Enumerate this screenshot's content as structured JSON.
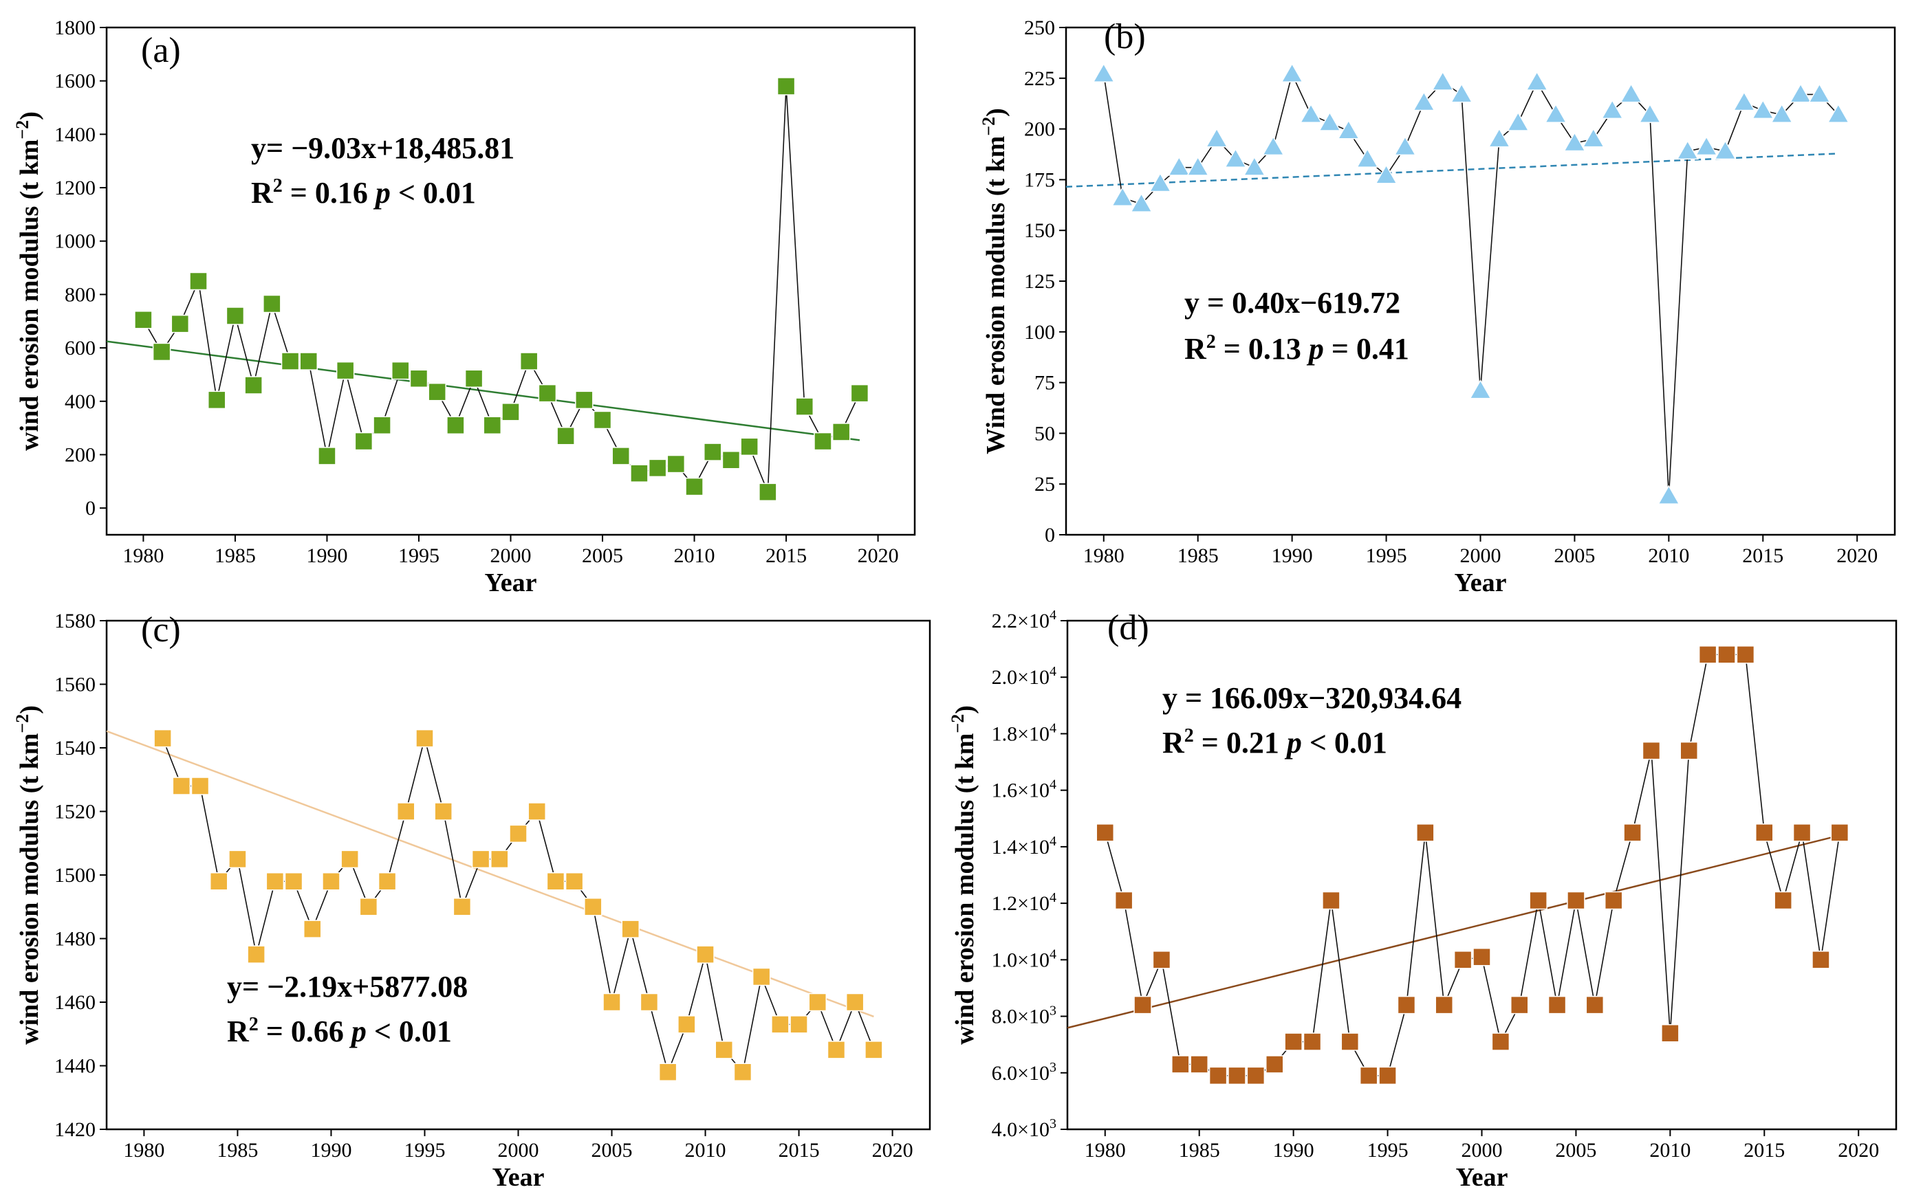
{
  "chart_data": [
    {
      "type": "line",
      "panel_label": "(a)",
      "title": "",
      "xlabel": "Year",
      "ylabel": "wind erosion modulus (t km",
      "ylabel_sup": "−2",
      "ylabel_close": ")",
      "xlim": [
        1978,
        2022
      ],
      "ylim": [
        -100,
        1800
      ],
      "xticks": [
        1980,
        1985,
        1990,
        1995,
        2000,
        2005,
        2010,
        2015,
        2020
      ],
      "yticks": [
        0,
        200,
        400,
        600,
        800,
        1000,
        1200,
        1400,
        1600,
        1800
      ],
      "x": [
        1980,
        1981,
        1982,
        1983,
        1984,
        1985,
        1986,
        1987,
        1988,
        1989,
        1990,
        1991,
        1992,
        1993,
        1994,
        1995,
        1996,
        1997,
        1998,
        1999,
        2000,
        2001,
        2002,
        2003,
        2004,
        2005,
        2006,
        2007,
        2008,
        2009,
        2010,
        2011,
        2012,
        2013,
        2014,
        2015,
        2016,
        2017,
        2018,
        2019
      ],
      "values": [
        705,
        585,
        690,
        850,
        405,
        720,
        460,
        765,
        550,
        550,
        195,
        515,
        250,
        310,
        515,
        485,
        435,
        310,
        485,
        310,
        360,
        550,
        430,
        270,
        405,
        330,
        195,
        130,
        150,
        165,
        80,
        210,
        180,
        230,
        60,
        1580,
        380,
        250,
        285,
        430
      ],
      "marker": "square",
      "marker_color": "#5a9e1e",
      "trend": {
        "slope": -9.03,
        "intercept": 18485.81,
        "x_range": [
          1978,
          2019
        ],
        "color": "#2e7d32",
        "dashed": false
      },
      "equation": "y= −9.03x+18,485.81",
      "r2_prefix": "R",
      "r2_sup": "2",
      "r2_text": " = 0.16 ",
      "p_symbol": "p",
      "p_text": " < 0.01"
    },
    {
      "type": "line",
      "panel_label": "(b)",
      "title": "",
      "xlabel": "Year",
      "ylabel": "Wind erosion modulus (t km",
      "ylabel_sup": "−2",
      "ylabel_close": ")",
      "xlim": [
        1978,
        2022
      ],
      "ylim": [
        0,
        250
      ],
      "xticks": [
        1980,
        1985,
        1990,
        1995,
        2000,
        2005,
        2010,
        2015,
        2020
      ],
      "yticks": [
        0,
        25,
        50,
        75,
        100,
        125,
        150,
        175,
        200,
        225,
        250
      ],
      "x": [
        1980,
        1981,
        1982,
        1983,
        1984,
        1985,
        1986,
        1987,
        1988,
        1989,
        1990,
        1991,
        1992,
        1993,
        1994,
        1995,
        1996,
        1997,
        1998,
        1999,
        2000,
        2001,
        2002,
        2003,
        2004,
        2005,
        2006,
        2007,
        2008,
        2009,
        2010,
        2011,
        2012,
        2013,
        2014,
        2015,
        2016,
        2017,
        2018,
        2019
      ],
      "values": [
        227,
        166,
        163,
        173,
        181,
        181,
        195,
        185,
        181,
        191,
        227,
        207,
        203,
        199,
        185,
        177,
        191,
        213,
        223,
        217,
        71,
        195,
        203,
        223,
        207,
        193,
        195,
        209,
        217,
        207,
        19,
        189,
        191,
        189,
        213,
        209,
        207,
        217,
        217,
        207
      ],
      "marker": "triangle",
      "marker_color": "#8ecbef",
      "trend": {
        "slope": 0.4,
        "intercept": -619.72,
        "x_range": [
          1978,
          2019
        ],
        "color": "#2f86b3",
        "dashed": true
      },
      "equation": "y = 0.40x−619.72",
      "r2_prefix": "R",
      "r2_sup": "2",
      "r2_text": " = 0.13 ",
      "p_symbol": "p",
      "p_text": " = 0.41"
    },
    {
      "type": "line",
      "panel_label": "(c)",
      "title": "",
      "xlabel": "Year",
      "ylabel": "wind erosion modulus (t km",
      "ylabel_sup": "−2",
      "ylabel_close": ")",
      "xlim": [
        1978,
        2022
      ],
      "ylim": [
        1420,
        1580
      ],
      "xticks": [
        1980,
        1985,
        1990,
        1995,
        2000,
        2005,
        2010,
        2015,
        2020
      ],
      "yticks": [
        1420,
        1440,
        1460,
        1480,
        1500,
        1520,
        1540,
        1560,
        1580
      ],
      "x": [
        1981,
        1982,
        1983,
        1984,
        1985,
        1986,
        1987,
        1988,
        1989,
        1990,
        1991,
        1992,
        1993,
        1994,
        1995,
        1996,
        1997,
        1998,
        1999,
        2000,
        2001,
        2002,
        2003,
        2004,
        2005,
        2006,
        2007,
        2008,
        2009,
        2010,
        2011,
        2012,
        2013,
        2014,
        2015,
        2016,
        2017,
        2018,
        2019
      ],
      "values": [
        1543,
        1528,
        1528,
        1498,
        1505,
        1475,
        1498,
        1498,
        1483,
        1498,
        1505,
        1490,
        1498,
        1520,
        1543,
        1520,
        1490,
        1505,
        1505,
        1513,
        1520,
        1498,
        1498,
        1490,
        1460,
        1483,
        1460,
        1438,
        1453,
        1475,
        1445,
        1438,
        1468,
        1453,
        1453,
        1460,
        1445,
        1460,
        1445
      ],
      "marker": "square",
      "marker_color": "#f0b43c",
      "trend": {
        "slope": -2.19,
        "intercept": 5877.08,
        "x_range": [
          1978,
          2019
        ],
        "color": "#f0c89a",
        "dashed": false
      },
      "equation": "y= −2.19x+5877.08",
      "r2_prefix": "R",
      "r2_sup": "2",
      "r2_text": " = 0.66 ",
      "p_symbol": "p",
      "p_text": " < 0.01"
    },
    {
      "type": "line",
      "panel_label": "(d)",
      "title": "",
      "xlabel": "Year",
      "ylabel": "wind erosion modulus (t km",
      "ylabel_sup": "−2",
      "ylabel_close": ")",
      "xlim": [
        1978,
        2022
      ],
      "ylim": [
        4000,
        22000
      ],
      "xticks": [
        1980,
        1985,
        1990,
        1995,
        2000,
        2005,
        2010,
        2015,
        2020
      ],
      "yticks": [
        4000,
        6000,
        8000,
        10000,
        12000,
        14000,
        16000,
        18000,
        20000,
        22000
      ],
      "ytick_labels": [
        {
          "base": "4.0×10",
          "exp": "3"
        },
        {
          "base": "6.0×10",
          "exp": "3"
        },
        {
          "base": "8.0×10",
          "exp": "3"
        },
        {
          "base": "1.0×10",
          "exp": "4"
        },
        {
          "base": "1.2×10",
          "exp": "4"
        },
        {
          "base": "1.4×10",
          "exp": "4"
        },
        {
          "base": "1.6×10",
          "exp": "4"
        },
        {
          "base": "1.8×10",
          "exp": "4"
        },
        {
          "base": "2.0×10",
          "exp": "4"
        },
        {
          "base": "2.2×10",
          "exp": "4"
        }
      ],
      "x": [
        1980,
        1981,
        1982,
        1983,
        1984,
        1985,
        1986,
        1987,
        1988,
        1989,
        1990,
        1991,
        1992,
        1993,
        1994,
        1995,
        1996,
        1997,
        1998,
        1999,
        2000,
        2001,
        2002,
        2003,
        2004,
        2005,
        2006,
        2007,
        2008,
        2009,
        2010,
        2011,
        2012,
        2013,
        2014,
        2015,
        2016,
        2017,
        2018,
        2019
      ],
      "values": [
        14500,
        12100,
        8400,
        10000,
        6300,
        6300,
        5900,
        5900,
        5900,
        6300,
        7100,
        7100,
        12100,
        7100,
        5900,
        5900,
        8400,
        14500,
        8400,
        10000,
        10100,
        7100,
        8400,
        12100,
        8400,
        12100,
        8400,
        12100,
        14500,
        17400,
        7400,
        17400,
        20800,
        20800,
        20800,
        14500,
        12100,
        14500,
        10000,
        14500
      ],
      "marker": "square",
      "marker_color": "#b5601c",
      "trend": {
        "slope": 166.09,
        "intercept": -320934.64,
        "x_range": [
          1978,
          2019
        ],
        "color": "#8a4a1c",
        "dashed": false
      },
      "equation": "y = 166.09x−320,934.64",
      "r2_prefix": "R",
      "r2_sup": "2",
      "r2_text": " = 0.21 ",
      "p_symbol": "p",
      "p_text": " < 0.01"
    }
  ]
}
